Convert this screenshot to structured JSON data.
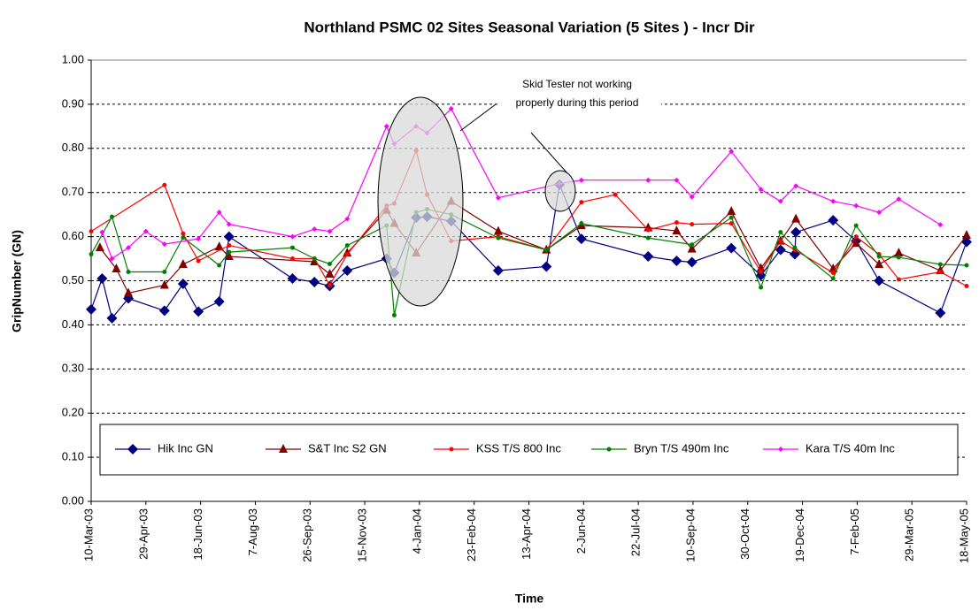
{
  "chart_data": {
    "type": "line",
    "title": "Northland PSMC 02 Sites Seasonal Variation (5 Sites ) - Incr Dir",
    "xlabel": "Time",
    "ylabel": "GripNumber (GN)",
    "annotations": [
      "Skid  Tester not working",
      "properly during this period"
    ],
    "grid": true,
    "legend": "bottom",
    "xlim": [
      "2003-03-10",
      "2005-05-18"
    ],
    "xticks": [
      {
        "value": "2003-03-10",
        "label": "10-Mar-03"
      },
      {
        "value": "2003-04-29",
        "label": "29-Apr-03"
      },
      {
        "value": "2003-06-18",
        "label": "18-Jun-03"
      },
      {
        "value": "2003-08-07",
        "label": "7-Aug-03"
      },
      {
        "value": "2003-09-26",
        "label": "26-Sep-03"
      },
      {
        "value": "2003-11-15",
        "label": "15-Nov-03"
      },
      {
        "value": "2004-01-04",
        "label": "4-Jan-04"
      },
      {
        "value": "2004-02-23",
        "label": "23-Feb-04"
      },
      {
        "value": "2004-04-13",
        "label": "13-Apr-04"
      },
      {
        "value": "2004-06-02",
        "label": "2-Jun-04"
      },
      {
        "value": "2004-07-22",
        "label": "22-Jul-04"
      },
      {
        "value": "2004-09-10",
        "label": "10-Sep-04"
      },
      {
        "value": "2004-10-30",
        "label": "30-Oct-04"
      },
      {
        "value": "2004-12-19",
        "label": "19-Dec-04"
      },
      {
        "value": "2005-02-07",
        "label": "7-Feb-05"
      },
      {
        "value": "2005-03-29",
        "label": "29-Mar-05"
      },
      {
        "value": "2005-05-18",
        "label": "18-May-05"
      }
    ],
    "ylim": [
      0,
      1
    ],
    "yticks": [
      {
        "value": 0,
        "label": "0.00"
      },
      {
        "value": 0.1,
        "label": "0.10"
      },
      {
        "value": 0.2,
        "label": "0.20"
      },
      {
        "value": 0.3,
        "label": "0.30"
      },
      {
        "value": 0.4,
        "label": "0.40"
      },
      {
        "value": 0.5,
        "label": "0.50"
      },
      {
        "value": 0.6,
        "label": "0.60"
      },
      {
        "value": 0.7,
        "label": "0.70"
      },
      {
        "value": 0.8,
        "label": "0.80"
      },
      {
        "value": 0.9,
        "label": "0.90"
      },
      {
        "value": 1,
        "label": "1.00"
      }
    ],
    "series": [
      {
        "name": "Hik Inc GN",
        "color": "#000080",
        "marker": "diamond",
        "x": [
          "2003-03-10",
          "2003-03-20",
          "2003-03-29",
          "2003-04-13",
          "2003-05-16",
          "2003-06-02",
          "2003-06-16",
          "2003-07-05",
          "2003-07-14",
          "2003-09-10",
          "2003-09-30",
          "2003-10-14",
          "2003-10-30",
          "2003-12-05",
          "2003-12-12",
          "2004-01-01",
          "2004-01-11",
          "2004-02-02",
          "2004-03-16",
          "2004-04-29",
          "2004-05-11",
          "2004-05-31",
          "2004-07-31",
          "2004-08-26",
          "2004-09-09",
          "2004-10-15",
          "2004-11-11",
          "2004-11-29",
          "2004-12-12",
          "2004-12-13",
          "2005-01-16",
          "2005-02-06",
          "2005-02-27",
          "2005-04-24",
          "2005-05-18"
        ],
        "values": [
          0.435,
          0.505,
          0.415,
          0.46,
          0.432,
          0.493,
          0.43,
          0.453,
          0.6,
          0.505,
          0.497,
          0.488,
          0.523,
          0.55,
          0.518,
          0.643,
          0.645,
          0.635,
          0.523,
          0.532,
          0.718,
          0.595,
          0.555,
          0.545,
          0.542,
          0.574,
          0.512,
          0.57,
          0.56,
          0.61,
          0.637,
          0.59,
          0.5,
          0.427,
          0.588
        ]
      },
      {
        "name": "S&T Inc S2 GN",
        "color": "#800000",
        "marker": "triangle",
        "x": [
          "2003-03-18",
          "2003-04-02",
          "2003-04-13",
          "2003-05-16",
          "2003-06-02",
          "2003-07-05",
          "2003-07-14",
          "2003-09-30",
          "2003-10-14",
          "2003-10-30",
          "2003-12-05",
          "2003-12-12",
          "2004-01-01",
          "2004-02-02",
          "2004-03-16",
          "2004-04-29",
          "2004-05-31",
          "2004-07-31",
          "2004-08-26",
          "2004-09-09",
          "2004-10-15",
          "2004-11-11",
          "2004-11-29",
          "2004-12-13",
          "2005-01-16",
          "2005-02-06",
          "2005-02-27",
          "2005-03-17",
          "2005-04-24",
          "2005-05-18"
        ],
        "values": [
          0.575,
          0.527,
          0.472,
          0.49,
          0.537,
          0.577,
          0.555,
          0.543,
          0.515,
          0.563,
          0.66,
          0.63,
          0.563,
          0.68,
          0.612,
          0.57,
          0.625,
          0.62,
          0.613,
          0.572,
          0.657,
          0.528,
          0.59,
          0.64,
          0.527,
          0.585,
          0.537,
          0.563,
          0.523,
          0.603
        ]
      },
      {
        "name": "KSS T/S 800 Inc",
        "color": "#ff0000",
        "marker": "circle",
        "x": [
          "2003-03-10",
          "2003-05-16",
          "2003-06-02",
          "2003-06-16",
          "2003-07-14",
          "2003-09-10",
          "2003-09-30",
          "2003-10-14",
          "2003-10-30",
          "2003-12-05",
          "2003-12-12",
          "2004-01-01",
          "2004-01-11",
          "2004-02-02",
          "2004-03-16",
          "2004-04-29",
          "2004-05-31",
          "2004-07-01",
          "2004-07-31",
          "2004-08-26",
          "2004-09-09",
          "2004-10-15",
          "2004-11-11",
          "2004-11-29",
          "2004-12-12",
          "2005-01-16",
          "2005-02-06",
          "2005-02-27",
          "2005-03-17",
          "2005-04-24",
          "2005-05-18"
        ],
        "values": [
          0.612,
          0.717,
          0.607,
          0.545,
          0.58,
          0.55,
          0.55,
          0.49,
          0.56,
          0.67,
          0.675,
          0.795,
          0.695,
          0.59,
          0.6,
          0.57,
          0.678,
          0.695,
          0.615,
          0.632,
          0.628,
          0.63,
          0.52,
          0.59,
          0.57,
          0.518,
          0.6,
          0.56,
          0.503,
          0.52,
          0.488
        ]
      },
      {
        "name": "Bryn T/S 490m Inc",
        "color": "#008000",
        "marker": "circle",
        "x": [
          "2003-03-10",
          "2003-03-29",
          "2003-04-13",
          "2003-05-16",
          "2003-06-02",
          "2003-07-05",
          "2003-07-14",
          "2003-09-10",
          "2003-09-30",
          "2003-10-14",
          "2003-10-30",
          "2003-12-05",
          "2003-12-12",
          "2004-01-01",
          "2004-01-11",
          "2004-02-02",
          "2004-03-16",
          "2004-04-29",
          "2004-05-31",
          "2004-07-31",
          "2004-09-09",
          "2004-10-15",
          "2004-11-11",
          "2004-11-29",
          "2004-12-12",
          "2005-01-16",
          "2005-02-06",
          "2005-02-27",
          "2005-03-17",
          "2005-04-24",
          "2005-05-18"
        ],
        "values": [
          0.56,
          0.645,
          0.52,
          0.52,
          0.598,
          0.535,
          0.565,
          0.575,
          0.55,
          0.538,
          0.58,
          0.625,
          0.422,
          0.655,
          0.662,
          0.65,
          0.597,
          0.57,
          0.63,
          0.597,
          0.582,
          0.643,
          0.485,
          0.61,
          0.575,
          0.505,
          0.625,
          0.555,
          0.553,
          0.537,
          0.535
        ]
      },
      {
        "name": "Kara T/S 40m Inc",
        "color": "#ff00ff",
        "marker": "small-diamond",
        "x": [
          "2003-03-20",
          "2003-03-29",
          "2003-04-13",
          "2003-04-29",
          "2003-05-16",
          "2003-06-16",
          "2003-07-05",
          "2003-07-14",
          "2003-09-10",
          "2003-09-30",
          "2003-10-14",
          "2003-10-30",
          "2003-12-05",
          "2003-12-12",
          "2004-01-01",
          "2004-01-11",
          "2004-02-02",
          "2004-03-16",
          "2004-05-11",
          "2004-05-31",
          "2004-07-31",
          "2004-08-26",
          "2004-09-09",
          "2004-10-15",
          "2004-11-11",
          "2004-11-29",
          "2004-12-13",
          "2005-01-16",
          "2005-02-06",
          "2005-02-27",
          "2005-03-17",
          "2005-04-24"
        ],
        "values": [
          0.61,
          0.55,
          0.575,
          0.612,
          0.583,
          0.595,
          0.655,
          0.628,
          0.6,
          0.617,
          0.612,
          0.64,
          0.85,
          0.81,
          0.85,
          0.835,
          0.89,
          0.688,
          0.72,
          0.728,
          0.728,
          0.728,
          0.69,
          0.793,
          0.707,
          0.68,
          0.715,
          0.68,
          0.67,
          0.655,
          0.685,
          0.627
        ]
      }
    ]
  }
}
